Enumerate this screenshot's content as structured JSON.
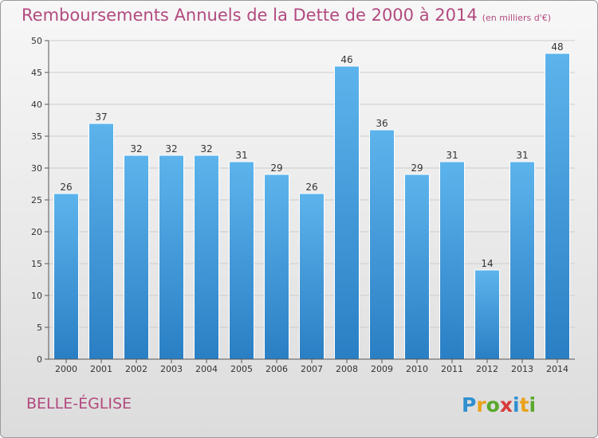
{
  "header": {
    "title": "Remboursements Annuels de la Dette de 2000 à 2014",
    "subtitle": "(en milliers d'€)"
  },
  "footer": {
    "commune": "BELLE-ÉGLISE",
    "logo_text": "Proxiti"
  },
  "colors": {
    "bar_top": "#5db4ec",
    "bar_bottom": "#2a7fc4",
    "title": "#b24a7e",
    "grid": "#cccccc"
  },
  "chart_data": {
    "type": "bar",
    "title": "Remboursements Annuels de la Dette de 2000 à 2014",
    "subtitle": "(en milliers d'€)",
    "categories": [
      "2000",
      "2001",
      "2002",
      "2003",
      "2004",
      "2005",
      "2006",
      "2007",
      "2008",
      "2009",
      "2010",
      "2011",
      "2012",
      "2013",
      "2014"
    ],
    "values": [
      26,
      37,
      32,
      32,
      32,
      31,
      29,
      26,
      46,
      36,
      29,
      31,
      14,
      31,
      48
    ],
    "ylim": [
      0,
      50
    ],
    "yticks": [
      0,
      5,
      10,
      15,
      20,
      25,
      30,
      35,
      40,
      45,
      50
    ],
    "grid": true,
    "data_labels": true
  }
}
